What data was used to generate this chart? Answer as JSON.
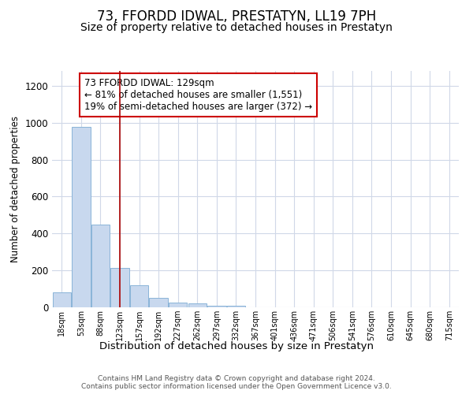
{
  "title": "73, FFORDD IDWAL, PRESTATYN, LL19 7PH",
  "subtitle": "Size of property relative to detached houses in Prestatyn",
  "xlabel": "Distribution of detached houses by size in Prestatyn",
  "ylabel": "Number of detached properties",
  "footnote": "Contains HM Land Registry data © Crown copyright and database right 2024.\nContains public sector information licensed under the Open Government Licence v3.0.",
  "bin_labels": [
    "18sqm",
    "53sqm",
    "88sqm",
    "123sqm",
    "157sqm",
    "192sqm",
    "227sqm",
    "262sqm",
    "297sqm",
    "332sqm",
    "367sqm",
    "401sqm",
    "436sqm",
    "471sqm",
    "506sqm",
    "541sqm",
    "576sqm",
    "610sqm",
    "645sqm",
    "680sqm",
    "715sqm"
  ],
  "bar_heights": [
    80,
    975,
    450,
    215,
    120,
    50,
    25,
    20,
    10,
    8,
    0,
    0,
    0,
    0,
    0,
    0,
    0,
    0,
    0,
    0,
    0
  ],
  "bar_color": "#c8d8ee",
  "bar_edge_color": "#8ab4d8",
  "vline_x": 3.0,
  "vline_color": "#aa0000",
  "annotation_text": "73 FFORDD IDWAL: 129sqm\n← 81% of detached houses are smaller (1,551)\n19% of semi-detached houses are larger (372) →",
  "annotation_box_color": "#ffffff",
  "annotation_box_edge": "#cc0000",
  "ylim": [
    0,
    1280
  ],
  "yticks": [
    0,
    200,
    400,
    600,
    800,
    1000,
    1200
  ],
  "background_color": "#ffffff",
  "plot_bg_color": "#ffffff",
  "grid_color": "#d0d8e8",
  "title_fontsize": 12,
  "subtitle_fontsize": 10
}
